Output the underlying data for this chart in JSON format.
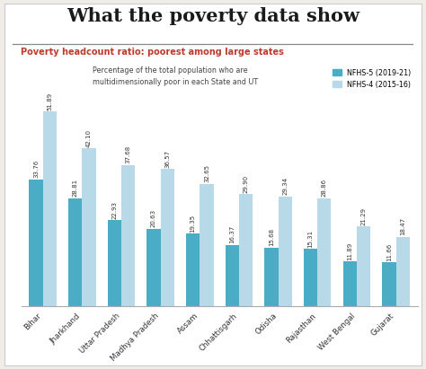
{
  "title": "What the poverty data show",
  "subtitle": "Poverty headcount ratio: poorest among large states",
  "annotation": "Percentage of the total population who are\nmultidimensionally poor in each State and UT",
  "legend": [
    "NFHS-5 (2019-21)",
    "NFHS-4 (2015-16)"
  ],
  "categories": [
    "Bihar",
    "Jharkhand",
    "Uttar Pradesh",
    "Madhya Pradesh",
    "Assam",
    "Chhattisgarh",
    "Odisha",
    "Rajasthan",
    "West Bengal",
    "Gujarat"
  ],
  "nfhs5": [
    33.76,
    28.81,
    22.93,
    20.63,
    19.35,
    16.37,
    15.68,
    15.31,
    11.89,
    11.66
  ],
  "nfhs4": [
    51.89,
    42.1,
    37.68,
    36.57,
    32.65,
    29.9,
    29.34,
    28.86,
    21.29,
    18.47
  ],
  "nfhs5_labels": [
    "33.76",
    "28.81",
    "22.93",
    "20.63",
    "19.35",
    "16.37",
    "15.68",
    "15.31",
    "11.89",
    "11.66"
  ],
  "nfhs4_labels": [
    "51.89",
    "42.10",
    "37.68",
    "36.57",
    "32.65",
    "29.90",
    "29.34",
    "28.86",
    "21.29",
    "18.47"
  ],
  "color_nfhs5": "#4bacc6",
  "color_nfhs4": "#b8d9e8",
  "bg_color": "#ffffff",
  "outer_bg": "#f0ede8",
  "title_color": "#1a1a1a",
  "subtitle_color": "#c0392b",
  "label_color": "#333333",
  "bar_width": 0.35,
  "ylim": [
    0,
    62
  ],
  "figsize": [
    4.74,
    4.11
  ],
  "dpi": 100
}
